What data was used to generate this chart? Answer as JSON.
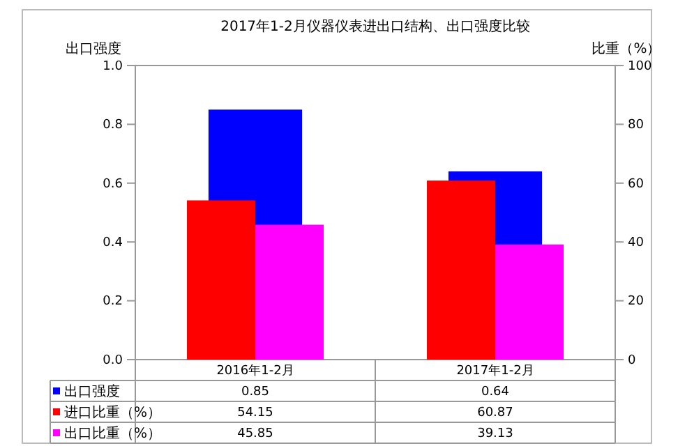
{
  "chart_data": {
    "type": "bar",
    "title": "2017年1-2月仪器仪表进出口结构、出口强度比较",
    "ylabel": "出口强度",
    "y2label": "比重（%）",
    "categories": [
      "2016年1-2月",
      "2017年1-2月"
    ],
    "series": [
      {
        "name": "出口强度",
        "color": "#0000ff",
        "values": [
          0.85,
          0.64
        ]
      },
      {
        "name": "进口比重（%）",
        "color": "#ff0000",
        "values": [
          54.15,
          60.87
        ],
        "axis": "y2"
      },
      {
        "name": "出口比重（%）",
        "color": "#ff00ff",
        "values": [
          45.85,
          39.13
        ],
        "axis": "y2"
      }
    ],
    "ylim": [
      0,
      1
    ],
    "yticks": [
      {
        "value": 0,
        "label": "0.0"
      },
      {
        "value": 0.2,
        "label": "0.2"
      },
      {
        "value": 0.4,
        "label": "0.4"
      },
      {
        "value": 0.6,
        "label": "0.6"
      },
      {
        "value": 0.8,
        "label": "0.8"
      },
      {
        "value": 1,
        "label": "1.0"
      }
    ],
    "y2lim": [
      0,
      100
    ],
    "y2ticks": [
      {
        "value": 0,
        "label": "0"
      },
      {
        "value": 20,
        "label": "20"
      },
      {
        "value": 40,
        "label": "40"
      },
      {
        "value": 60,
        "label": "60"
      },
      {
        "value": 80,
        "label": "80"
      },
      {
        "value": 100,
        "label": "100"
      }
    ],
    "data_labels": true,
    "legend": "bottom",
    "grid": false
  }
}
